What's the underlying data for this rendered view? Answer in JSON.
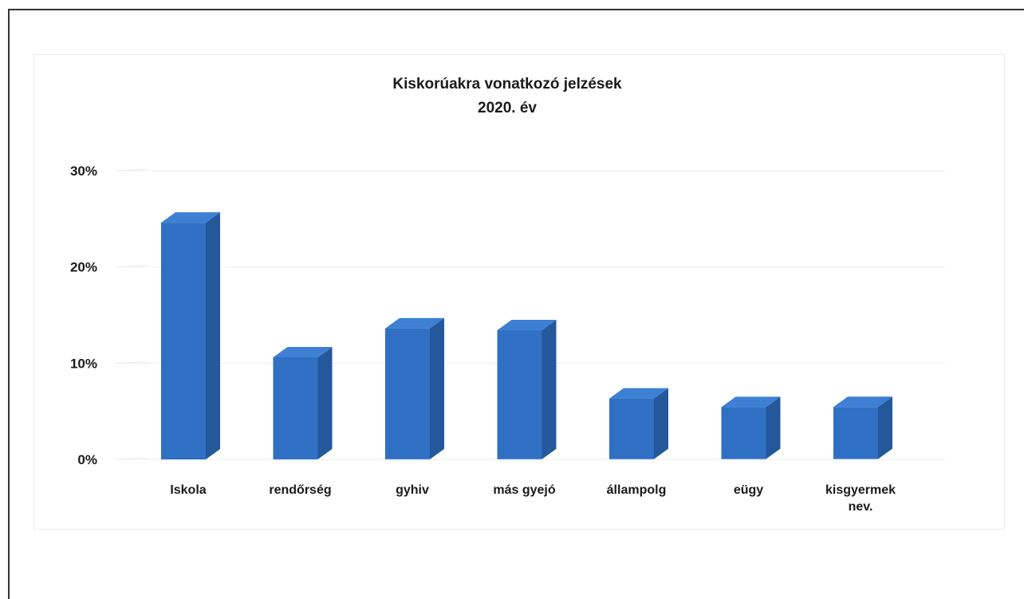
{
  "chart_data": {
    "type": "bar",
    "title": [
      "Kiskorúakra vonatkozó jelzések",
      "2020. év"
    ],
    "categories": [
      [
        "Iskola"
      ],
      [
        "rendőrség"
      ],
      [
        "gyhiv"
      ],
      [
        "más gyejó"
      ],
      [
        "állampolg"
      ],
      [
        "eügy"
      ],
      [
        "kisgyermek",
        "nev."
      ]
    ],
    "values": [
      24.6,
      10.6,
      13.6,
      13.4,
      6.3,
      5.4,
      5.4
    ],
    "yticks": [
      {
        "value": 0,
        "label": "0%"
      },
      {
        "value": 10,
        "label": "10%"
      },
      {
        "value": 20,
        "label": "20%"
      },
      {
        "value": 30,
        "label": "30%"
      }
    ],
    "ylim": [
      0,
      30
    ],
    "xlabel": "",
    "ylabel": "",
    "grid": true,
    "three_d": true,
    "bar_color": "#2f6fc4",
    "bar_side_color": "#24589b",
    "bar_top_color": "#3d80d3"
  }
}
